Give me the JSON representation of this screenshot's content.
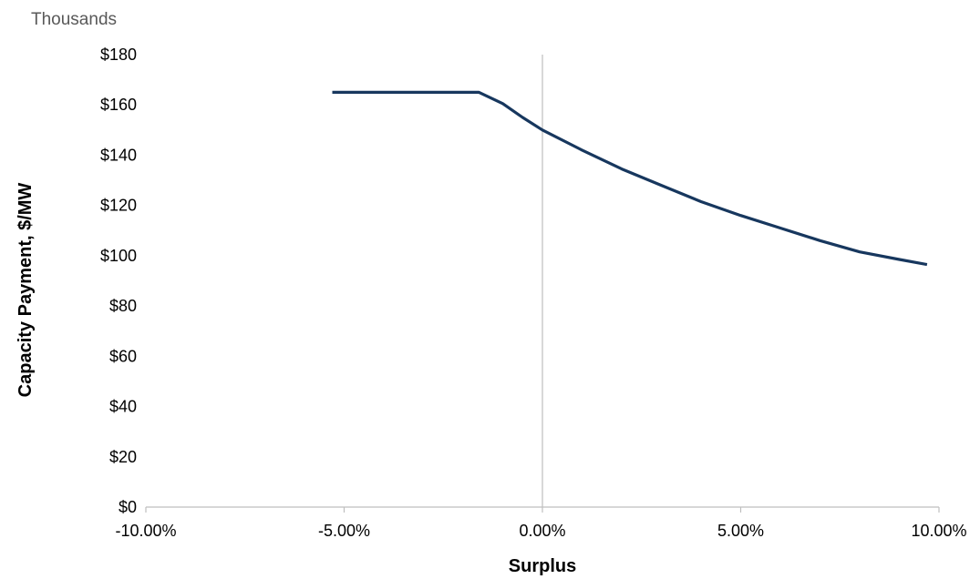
{
  "chart_data": {
    "type": "line",
    "title": "",
    "units_label": "Thousands",
    "xlabel": "Surplus",
    "ylabel": "Capacity Payment, $/MW",
    "xlim": [
      -0.1,
      0.1
    ],
    "ylim": [
      0,
      180
    ],
    "x_ticks": [
      -0.1,
      -0.05,
      0.0,
      0.05,
      0.1
    ],
    "x_tick_labels": [
      "-10.00%",
      "-5.00%",
      "0.00%",
      "5.00%",
      "10.00%"
    ],
    "y_ticks": [
      0,
      20,
      40,
      60,
      80,
      100,
      120,
      140,
      160,
      180
    ],
    "y_tick_labels": [
      "$0",
      "$20",
      "$40",
      "$60",
      "$80",
      "$100",
      "$120",
      "$140",
      "$160",
      "$180"
    ],
    "grid": false,
    "series": [
      {
        "color": "#17375e",
        "x": [
          -0.053,
          -0.016,
          -0.01,
          -0.005,
          0.0,
          0.01,
          0.02,
          0.03,
          0.04,
          0.05,
          0.06,
          0.07,
          0.08,
          0.09,
          0.097
        ],
        "y": [
          165,
          165,
          160.5,
          155,
          150,
          142,
          134.5,
          128,
          121.5,
          116,
          111,
          106,
          101.5,
          98.5,
          96.5
        ]
      }
    ]
  }
}
